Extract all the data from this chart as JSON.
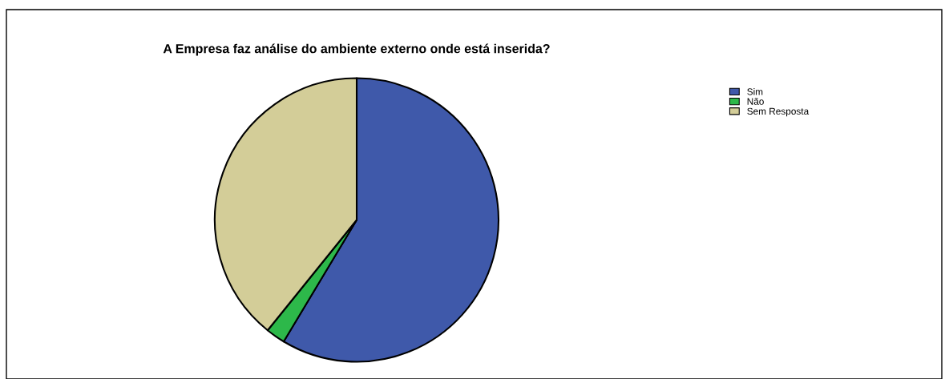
{
  "chart_data": {
    "type": "pie",
    "title": "A Empresa faz análise do ambiente externo onde está inserida?",
    "categories": [
      "Sim",
      "Não",
      "Sem Resposta"
    ],
    "values": [
      58.6,
      2.2,
      39.2
    ],
    "colors": [
      "#3f59aa",
      "#2db84a",
      "#d3cd98"
    ],
    "legend": "top right"
  }
}
